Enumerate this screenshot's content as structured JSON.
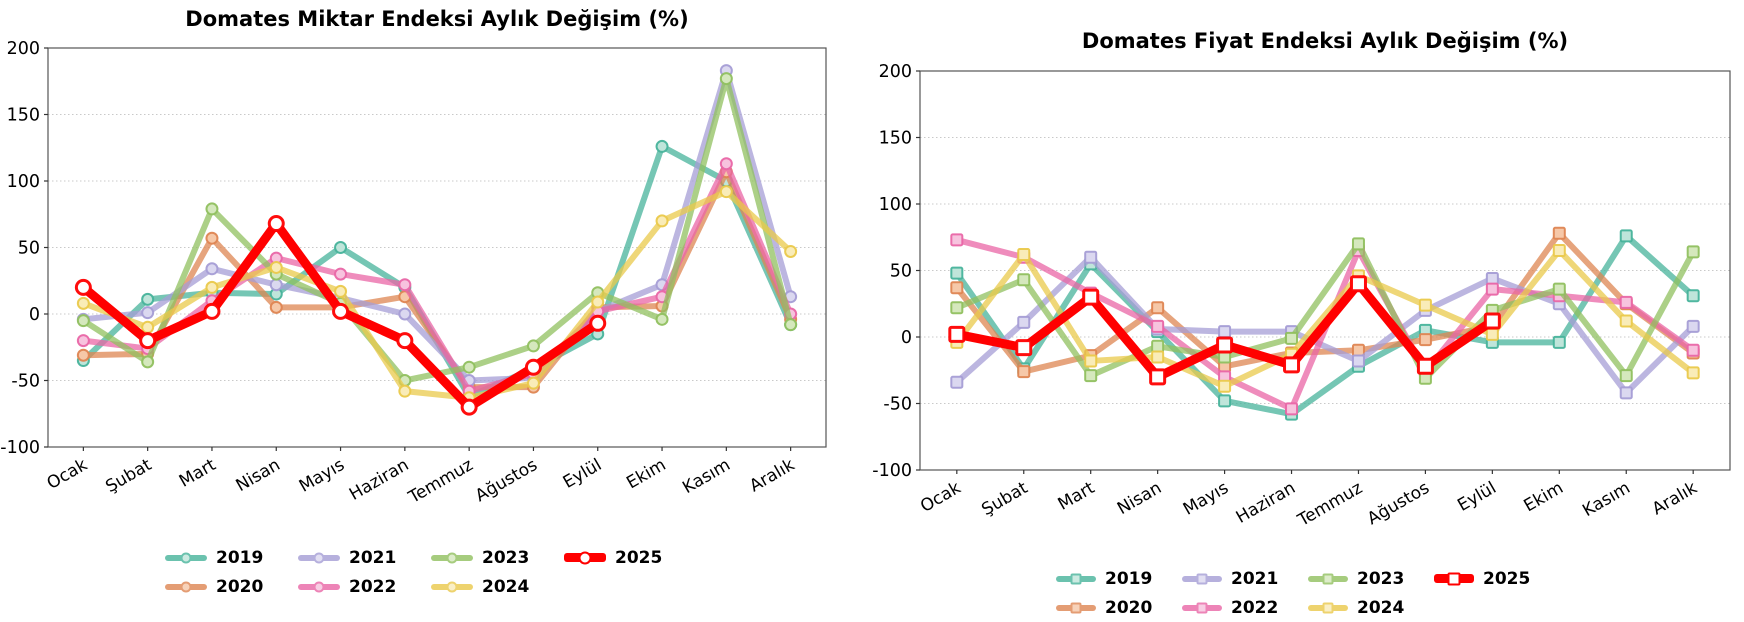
{
  "page": {
    "background": "#ffffff"
  },
  "chart_data": [
    {
      "type": "line",
      "title": "Domates Miktar Endeksi Aylık Değişim (%)",
      "categories": [
        "Ocak",
        "Şubat",
        "Mart",
        "Nisan",
        "Mayıs",
        "Haziran",
        "Temmuz",
        "Ağustos",
        "Eylül",
        "Ekim",
        "Kasım",
        "Aralık"
      ],
      "ylim": [
        -100,
        200
      ],
      "yticks": [
        200,
        150,
        100,
        50,
        0,
        -50,
        -100
      ],
      "grid": true,
      "legend_position": "bottom",
      "marker_shape": "circle",
      "series": [
        {
          "name": "2019",
          "color": "#47b39b",
          "fill": "#bfe5da",
          "values": [
            -35,
            11,
            16,
            15,
            50,
            20,
            -62,
            -41,
            -15,
            126,
            100,
            -8
          ]
        },
        {
          "name": "2020",
          "color": "#de8552",
          "fill": "#f6c8a8",
          "values": [
            -31,
            -30,
            57,
            5,
            5,
            13,
            -55,
            -55,
            5,
            6,
            107,
            -4
          ]
        },
        {
          "name": "2021",
          "color": "#a59dd5",
          "fill": "#dbd8f0",
          "values": [
            -4,
            1,
            34,
            22,
            12,
            0,
            -50,
            -48,
            2,
            22,
            183,
            13
          ]
        },
        {
          "name": "2022",
          "color": "#e966a6",
          "fill": "#f7c3de",
          "values": [
            -20,
            -26,
            10,
            42,
            30,
            22,
            -58,
            -45,
            2,
            13,
            113,
            0
          ]
        },
        {
          "name": "2023",
          "color": "#90c05f",
          "fill": "#d5e8bd",
          "values": [
            -5,
            -36,
            79,
            30,
            8,
            -50,
            -40,
            -24,
            16,
            -4,
            177,
            -8
          ]
        },
        {
          "name": "2024",
          "color": "#eac94b",
          "fill": "#f9ecb8",
          "values": [
            8,
            -10,
            20,
            35,
            17,
            -58,
            -63,
            -52,
            9,
            70,
            92,
            47
          ]
        },
        {
          "name": "2025",
          "color": "#ff0000",
          "fill": "#ffffff",
          "values": [
            20,
            -20,
            2,
            68,
            2,
            -20,
            -70,
            -40,
            -7
          ]
        }
      ]
    },
    {
      "type": "line",
      "title": "Domates Fiyat Endeksi Aylık Değişim (%)",
      "categories": [
        "Ocak",
        "Şubat",
        "Mart",
        "Nisan",
        "Mayıs",
        "Haziran",
        "Temmuz",
        "Ağustos",
        "Eylül",
        "Ekim",
        "Kasım",
        "Aralık"
      ],
      "ylim": [
        -100,
        200
      ],
      "yticks": [
        200,
        150,
        100,
        50,
        0,
        -50,
        -100
      ],
      "grid": true,
      "legend_position": "bottom",
      "marker_shape": "square",
      "series": [
        {
          "name": "2019",
          "color": "#47b39b",
          "fill": "#bfe5da",
          "values": [
            48,
            -24,
            55,
            4,
            -48,
            -58,
            -22,
            5,
            -4,
            -4,
            76,
            31
          ]
        },
        {
          "name": "2020",
          "color": "#de8552",
          "fill": "#f6c8a8",
          "values": [
            37,
            -26,
            -14,
            22,
            -22,
            -12,
            -10,
            -2,
            8,
            78,
            25,
            -12
          ]
        },
        {
          "name": "2021",
          "color": "#a59dd5",
          "fill": "#dbd8f0",
          "values": [
            -34,
            11,
            60,
            6,
            4,
            4,
            -18,
            20,
            44,
            25,
            -42,
            8
          ]
        },
        {
          "name": "2022",
          "color": "#e966a6",
          "fill": "#f7c3de",
          "values": [
            73,
            60,
            33,
            8,
            -30,
            -54,
            65,
            -26,
            36,
            31,
            26,
            -10
          ]
        },
        {
          "name": "2023",
          "color": "#90c05f",
          "fill": "#d5e8bd",
          "values": [
            22,
            43,
            -29,
            -7,
            -15,
            -1,
            70,
            -31,
            20,
            36,
            -29,
            64
          ]
        },
        {
          "name": "2024",
          "color": "#eac94b",
          "fill": "#f9ecb8",
          "values": [
            -4,
            62,
            -18,
            -15,
            -37,
            -13,
            46,
            24,
            2,
            65,
            12,
            -27
          ]
        },
        {
          "name": "2025",
          "color": "#ff0000",
          "fill": "#ffffff",
          "values": [
            2,
            -8,
            30,
            -30,
            -6,
            -21,
            40,
            -22,
            12
          ]
        }
      ]
    }
  ]
}
